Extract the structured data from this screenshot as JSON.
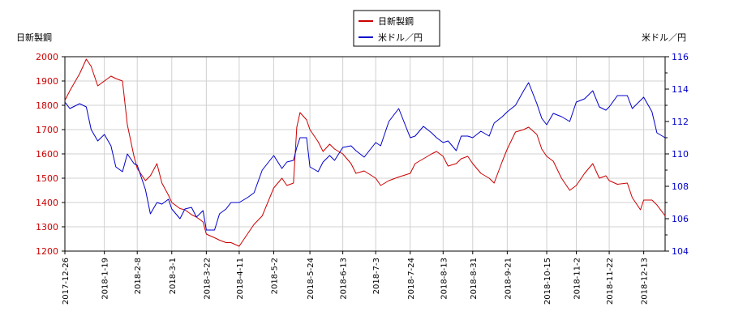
{
  "chart_data": {
    "type": "line",
    "title": "",
    "legend": {
      "placement": "top-center",
      "entries": [
        {
          "name": "日新製鋼",
          "color": "#cc0000"
        },
        {
          "name": "米ドル／円",
          "color": "#0000cc"
        }
      ]
    },
    "left_axis": {
      "label": "日新製鋼",
      "color": "#cc0000",
      "ylim": [
        1200,
        2000
      ],
      "ticks": [
        1200,
        1300,
        1400,
        1500,
        1600,
        1700,
        1800,
        1900,
        2000
      ]
    },
    "right_axis": {
      "label": "米ドル／円",
      "color": "#0000cc",
      "ylim": [
        104,
        116
      ],
      "ticks": [
        104,
        106,
        108,
        110,
        112,
        114,
        116
      ]
    },
    "x_axis": {
      "type": "date",
      "range": [
        "2017-12-26",
        "2018-12-26"
      ],
      "ticks": [
        "2017-12-26",
        "2018-1-19",
        "2018-2-8",
        "2018-3-1",
        "2018-3-22",
        "2018-4-11",
        "2018-5-2",
        "2018-5-24",
        "2018-6-13",
        "2018-7-3",
        "2018-7-24",
        "2018-8-13",
        "2018-8-31",
        "2018-9-21",
        "2018-10-15",
        "2018-11-2",
        "2018-11-22",
        "2018-12-13"
      ]
    },
    "grid": true,
    "series": [
      {
        "name": "日新製鋼",
        "axis": "left",
        "color": "#cc0000",
        "points": [
          [
            "2017-12-26",
            1820
          ],
          [
            "2017-12-29",
            1860
          ],
          [
            "2018-01-04",
            1930
          ],
          [
            "2018-01-08",
            1990
          ],
          [
            "2018-01-11",
            1960
          ],
          [
            "2018-01-15",
            1880
          ],
          [
            "2018-01-19",
            1900
          ],
          [
            "2018-01-23",
            1920
          ],
          [
            "2018-01-26",
            1910
          ],
          [
            "2018-01-30",
            1900
          ],
          [
            "2018-02-02",
            1720
          ],
          [
            "2018-02-06",
            1590
          ],
          [
            "2018-02-08",
            1540
          ],
          [
            "2018-02-13",
            1490
          ],
          [
            "2018-02-16",
            1510
          ],
          [
            "2018-02-20",
            1560
          ],
          [
            "2018-02-23",
            1480
          ],
          [
            "2018-02-27",
            1430
          ],
          [
            "2018-03-01",
            1400
          ],
          [
            "2018-03-06",
            1375
          ],
          [
            "2018-03-09",
            1370
          ],
          [
            "2018-03-13",
            1350
          ],
          [
            "2018-03-16",
            1340
          ],
          [
            "2018-03-20",
            1320
          ],
          [
            "2018-03-22",
            1270
          ],
          [
            "2018-03-27",
            1255
          ],
          [
            "2018-03-30",
            1245
          ],
          [
            "2018-04-03",
            1235
          ],
          [
            "2018-04-06",
            1235
          ],
          [
            "2018-04-11",
            1220
          ],
          [
            "2018-04-16",
            1270
          ],
          [
            "2018-04-20",
            1310
          ],
          [
            "2018-04-25",
            1345
          ],
          [
            "2018-05-02",
            1460
          ],
          [
            "2018-05-07",
            1500
          ],
          [
            "2018-05-10",
            1470
          ],
          [
            "2018-05-14",
            1480
          ],
          [
            "2018-05-16",
            1710
          ],
          [
            "2018-05-18",
            1770
          ],
          [
            "2018-05-22",
            1740
          ],
          [
            "2018-05-24",
            1700
          ],
          [
            "2018-05-29",
            1650
          ],
          [
            "2018-06-01",
            1610
          ],
          [
            "2018-06-05",
            1640
          ],
          [
            "2018-06-08",
            1620
          ],
          [
            "2018-06-13",
            1600
          ],
          [
            "2018-06-18",
            1560
          ],
          [
            "2018-06-21",
            1520
          ],
          [
            "2018-06-26",
            1530
          ],
          [
            "2018-07-03",
            1500
          ],
          [
            "2018-07-06",
            1470
          ],
          [
            "2018-07-11",
            1490
          ],
          [
            "2018-07-17",
            1505
          ],
          [
            "2018-07-24",
            1520
          ],
          [
            "2018-07-27",
            1560
          ],
          [
            "2018-08-01",
            1580
          ],
          [
            "2018-08-06",
            1600
          ],
          [
            "2018-08-09",
            1610
          ],
          [
            "2018-08-13",
            1590
          ],
          [
            "2018-08-16",
            1550
          ],
          [
            "2018-08-21",
            1560
          ],
          [
            "2018-08-24",
            1580
          ],
          [
            "2018-08-28",
            1590
          ],
          [
            "2018-08-31",
            1560
          ],
          [
            "2018-09-05",
            1520
          ],
          [
            "2018-09-10",
            1500
          ],
          [
            "2018-09-13",
            1480
          ],
          [
            "2018-09-18",
            1570
          ],
          [
            "2018-09-21",
            1620
          ],
          [
            "2018-09-26",
            1690
          ],
          [
            "2018-10-01",
            1700
          ],
          [
            "2018-10-04",
            1710
          ],
          [
            "2018-10-09",
            1680
          ],
          [
            "2018-10-12",
            1620
          ],
          [
            "2018-10-15",
            1590
          ],
          [
            "2018-10-19",
            1570
          ],
          [
            "2018-10-24",
            1500
          ],
          [
            "2018-10-29",
            1450
          ],
          [
            "2018-11-02",
            1470
          ],
          [
            "2018-11-07",
            1520
          ],
          [
            "2018-11-12",
            1560
          ],
          [
            "2018-11-16",
            1500
          ],
          [
            "2018-11-20",
            1510
          ],
          [
            "2018-11-22",
            1490
          ],
          [
            "2018-11-27",
            1475
          ],
          [
            "2018-12-03",
            1480
          ],
          [
            "2018-12-06",
            1420
          ],
          [
            "2018-12-11",
            1370
          ],
          [
            "2018-12-13",
            1410
          ],
          [
            "2018-12-18",
            1410
          ],
          [
            "2018-12-21",
            1390
          ],
          [
            "2018-12-26",
            1345
          ]
        ]
      },
      {
        "name": "米ドル／円",
        "axis": "right",
        "color": "#0000cc",
        "points": [
          [
            "2017-12-26",
            113.2
          ],
          [
            "2017-12-29",
            112.8
          ],
          [
            "2018-01-04",
            113.1
          ],
          [
            "2018-01-08",
            112.9
          ],
          [
            "2018-01-11",
            111.5
          ],
          [
            "2018-01-15",
            110.8
          ],
          [
            "2018-01-19",
            111.2
          ],
          [
            "2018-01-23",
            110.5
          ],
          [
            "2018-01-26",
            109.2
          ],
          [
            "2018-01-30",
            108.9
          ],
          [
            "2018-02-02",
            110.0
          ],
          [
            "2018-02-06",
            109.4
          ],
          [
            "2018-02-08",
            109.3
          ],
          [
            "2018-02-13",
            107.8
          ],
          [
            "2018-02-16",
            106.3
          ],
          [
            "2018-02-20",
            107.0
          ],
          [
            "2018-02-23",
            106.9
          ],
          [
            "2018-02-27",
            107.2
          ],
          [
            "2018-03-01",
            106.6
          ],
          [
            "2018-03-06",
            106.0
          ],
          [
            "2018-03-09",
            106.6
          ],
          [
            "2018-03-13",
            106.7
          ],
          [
            "2018-03-16",
            106.1
          ],
          [
            "2018-03-20",
            106.5
          ],
          [
            "2018-03-22",
            105.3
          ],
          [
            "2018-03-27",
            105.3
          ],
          [
            "2018-03-30",
            106.3
          ],
          [
            "2018-04-03",
            106.6
          ],
          [
            "2018-04-06",
            107.0
          ],
          [
            "2018-04-11",
            107.0
          ],
          [
            "2018-04-16",
            107.3
          ],
          [
            "2018-04-20",
            107.6
          ],
          [
            "2018-04-25",
            109.0
          ],
          [
            "2018-05-02",
            109.9
          ],
          [
            "2018-05-07",
            109.1
          ],
          [
            "2018-05-10",
            109.5
          ],
          [
            "2018-05-14",
            109.6
          ],
          [
            "2018-05-16",
            110.4
          ],
          [
            "2018-05-18",
            111.0
          ],
          [
            "2018-05-22",
            111.0
          ],
          [
            "2018-05-24",
            109.2
          ],
          [
            "2018-05-29",
            108.9
          ],
          [
            "2018-06-01",
            109.5
          ],
          [
            "2018-06-05",
            109.9
          ],
          [
            "2018-06-08",
            109.6
          ],
          [
            "2018-06-13",
            110.4
          ],
          [
            "2018-06-18",
            110.5
          ],
          [
            "2018-06-21",
            110.2
          ],
          [
            "2018-06-26",
            109.8
          ],
          [
            "2018-07-03",
            110.7
          ],
          [
            "2018-07-06",
            110.5
          ],
          [
            "2018-07-11",
            112.0
          ],
          [
            "2018-07-17",
            112.8
          ],
          [
            "2018-07-24",
            111.0
          ],
          [
            "2018-07-27",
            111.1
          ],
          [
            "2018-08-01",
            111.7
          ],
          [
            "2018-08-06",
            111.3
          ],
          [
            "2018-08-09",
            111.0
          ],
          [
            "2018-08-13",
            110.7
          ],
          [
            "2018-08-16",
            110.8
          ],
          [
            "2018-08-21",
            110.2
          ],
          [
            "2018-08-24",
            111.1
          ],
          [
            "2018-08-28",
            111.1
          ],
          [
            "2018-08-31",
            111.0
          ],
          [
            "2018-09-05",
            111.4
          ],
          [
            "2018-09-10",
            111.1
          ],
          [
            "2018-09-13",
            111.9
          ],
          [
            "2018-09-18",
            112.3
          ],
          [
            "2018-09-21",
            112.6
          ],
          [
            "2018-09-26",
            113.0
          ],
          [
            "2018-10-01",
            113.9
          ],
          [
            "2018-10-04",
            114.4
          ],
          [
            "2018-10-09",
            113.1
          ],
          [
            "2018-10-12",
            112.2
          ],
          [
            "2018-10-15",
            111.8
          ],
          [
            "2018-10-19",
            112.5
          ],
          [
            "2018-10-24",
            112.3
          ],
          [
            "2018-10-29",
            112.0
          ],
          [
            "2018-11-02",
            113.2
          ],
          [
            "2018-11-07",
            113.4
          ],
          [
            "2018-11-12",
            113.9
          ],
          [
            "2018-11-16",
            112.9
          ],
          [
            "2018-11-20",
            112.7
          ],
          [
            "2018-11-22",
            112.9
          ],
          [
            "2018-11-27",
            113.6
          ],
          [
            "2018-12-03",
            113.6
          ],
          [
            "2018-12-06",
            112.8
          ],
          [
            "2018-12-11",
            113.3
          ],
          [
            "2018-12-13",
            113.5
          ],
          [
            "2018-12-18",
            112.6
          ],
          [
            "2018-12-21",
            111.3
          ],
          [
            "2018-12-26",
            111.0
          ]
        ]
      }
    ]
  }
}
